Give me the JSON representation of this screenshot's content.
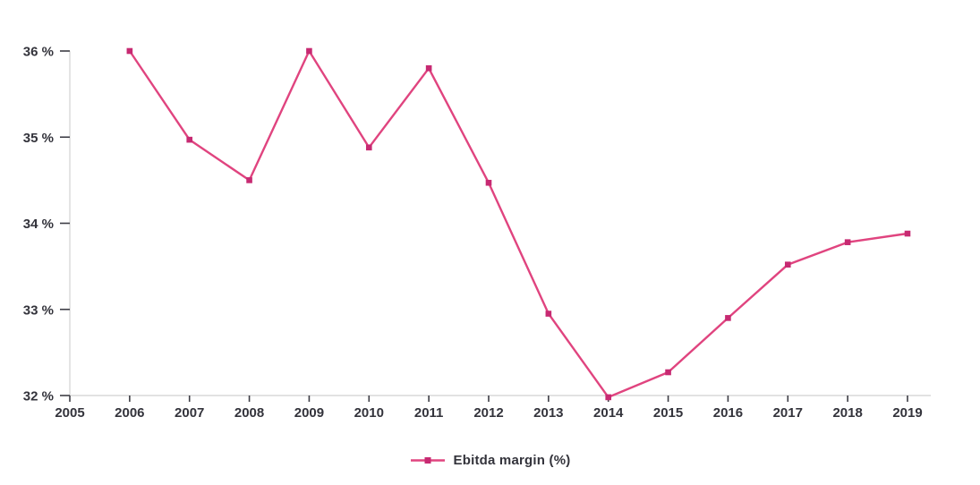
{
  "page": {
    "background": "#ffffff"
  },
  "chart_data": {
    "type": "line",
    "title": "",
    "xlabel": "",
    "ylabel": "",
    "x": [
      2006,
      2007,
      2008,
      2009,
      2010,
      2011,
      2012,
      2013,
      2014,
      2015,
      2016,
      2017,
      2018,
      2019
    ],
    "series": [
      {
        "name": "Ebitda margin (%)",
        "color": "#e0447f",
        "marker_color": "#c72a72",
        "marker_shape": "square",
        "values": [
          36.0,
          34.97,
          34.5,
          36.0,
          34.88,
          35.8,
          34.47,
          32.95,
          31.98,
          32.27,
          32.9,
          33.52,
          33.78,
          33.88
        ]
      }
    ],
    "x_tick_labels": [
      "2005",
      "2006",
      "2007",
      "2008",
      "2009",
      "2010",
      "2011",
      "2012",
      "2013",
      "2014",
      "2015",
      "2016",
      "2017",
      "2018",
      "2019"
    ],
    "y_tick_values": [
      32,
      33,
      34,
      35,
      36
    ],
    "y_tick_labels": [
      "32 %",
      "33 %",
      "34 %",
      "35 %",
      "36 %"
    ],
    "xlim": [
      2005,
      2019.4
    ],
    "ylim": [
      32,
      36
    ],
    "grid": false,
    "legend": {
      "label": "Ebitda margin (%)",
      "position": "bottom-center"
    },
    "colors": {
      "axis_line": "#d9d9d9",
      "tick": "#3d3d45",
      "tick_label": "#33333b"
    }
  }
}
